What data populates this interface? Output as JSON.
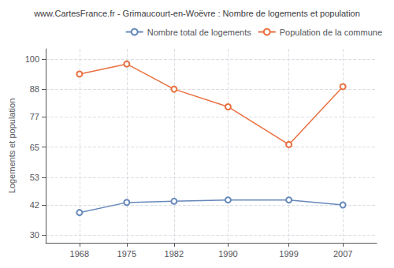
{
  "chart_data": {
    "type": "line",
    "title": "www.CartesFrance.fr - Grimaucourt-en-Woëvre : Nombre de logements et population",
    "ylabel": "Logements et population",
    "x": [
      1968,
      1975,
      1982,
      1990,
      1999,
      2007
    ],
    "series": [
      {
        "name": "Nombre total de logements",
        "color": "#6688bb",
        "marker": "circle",
        "values": [
          39,
          43,
          43.5,
          44,
          44,
          42
        ]
      },
      {
        "name": "Population de la commune",
        "color": "#e87040",
        "marker": "circle",
        "values": [
          94,
          98,
          88,
          81,
          66,
          89
        ]
      }
    ],
    "xlim": [
      1963,
      2012
    ],
    "xticks": [
      1968,
      1975,
      1982,
      1990,
      1999,
      2007
    ],
    "ylim": [
      27,
      104
    ],
    "yticks": [
      30,
      42,
      53,
      65,
      77,
      88,
      100
    ],
    "grid": true,
    "legend": "upper right"
  }
}
